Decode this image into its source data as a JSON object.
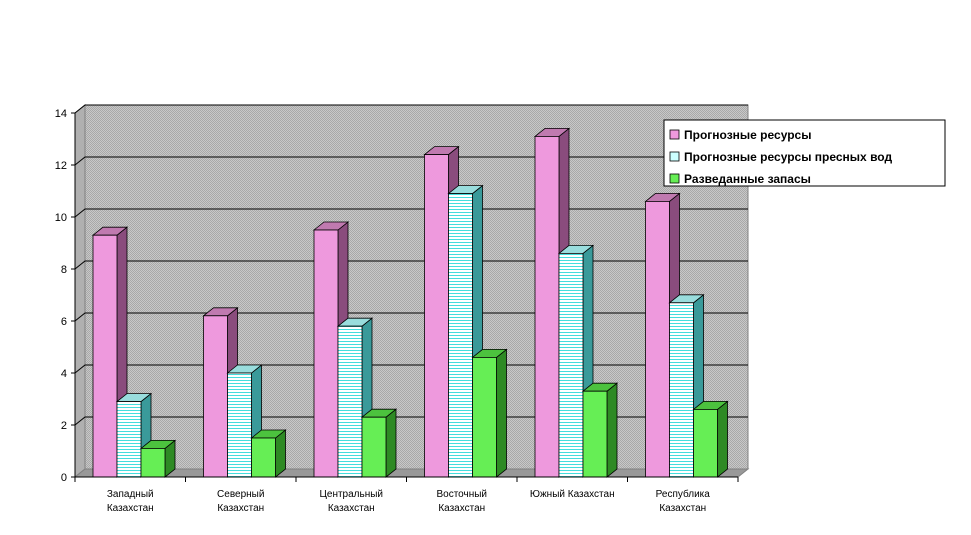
{
  "chart_data": {
    "type": "bar",
    "categories": [
      [
        "Западный",
        "Казахстан"
      ],
      [
        "Северный",
        "Казахстан"
      ],
      [
        "Центральный",
        "Казахстан"
      ],
      [
        "Восточный",
        "Казахстан"
      ],
      [
        "Южный Казахстан"
      ],
      [
        "Республика",
        "Казахстан"
      ]
    ],
    "series": [
      {
        "name": "Прогнозные ресурсы",
        "values": [
          9.3,
          6.2,
          9.5,
          12.4,
          13.1,
          10.6
        ]
      },
      {
        "name": "Прогнозные ресурсы пресных вод",
        "values": [
          2.9,
          4.0,
          5.8,
          10.9,
          8.6,
          6.7
        ]
      },
      {
        "name": "Разведанные запасы",
        "values": [
          1.1,
          1.5,
          2.3,
          4.6,
          3.3,
          2.6
        ]
      }
    ],
    "ylim": [
      0,
      14
    ],
    "yticks": [
      0,
      2,
      4,
      6,
      8,
      10,
      12,
      14
    ],
    "grid": true,
    "legend_position": "top-right",
    "colors": {
      "series": [
        "#ee99dd",
        "#ccffff",
        "#66ee55"
      ],
      "series_dark": [
        "#8a4c7d",
        "#3a9a9a",
        "#2e8a24"
      ],
      "series_top": [
        "#c07ab0",
        "#99dddd",
        "#4cc23e"
      ],
      "series_pattern": [
        "#ffb8ee",
        "#ffffff",
        "#7af46a"
      ],
      "wall": "#c0c0c0",
      "floor": "#999999",
      "grid": "#000000"
    }
  }
}
